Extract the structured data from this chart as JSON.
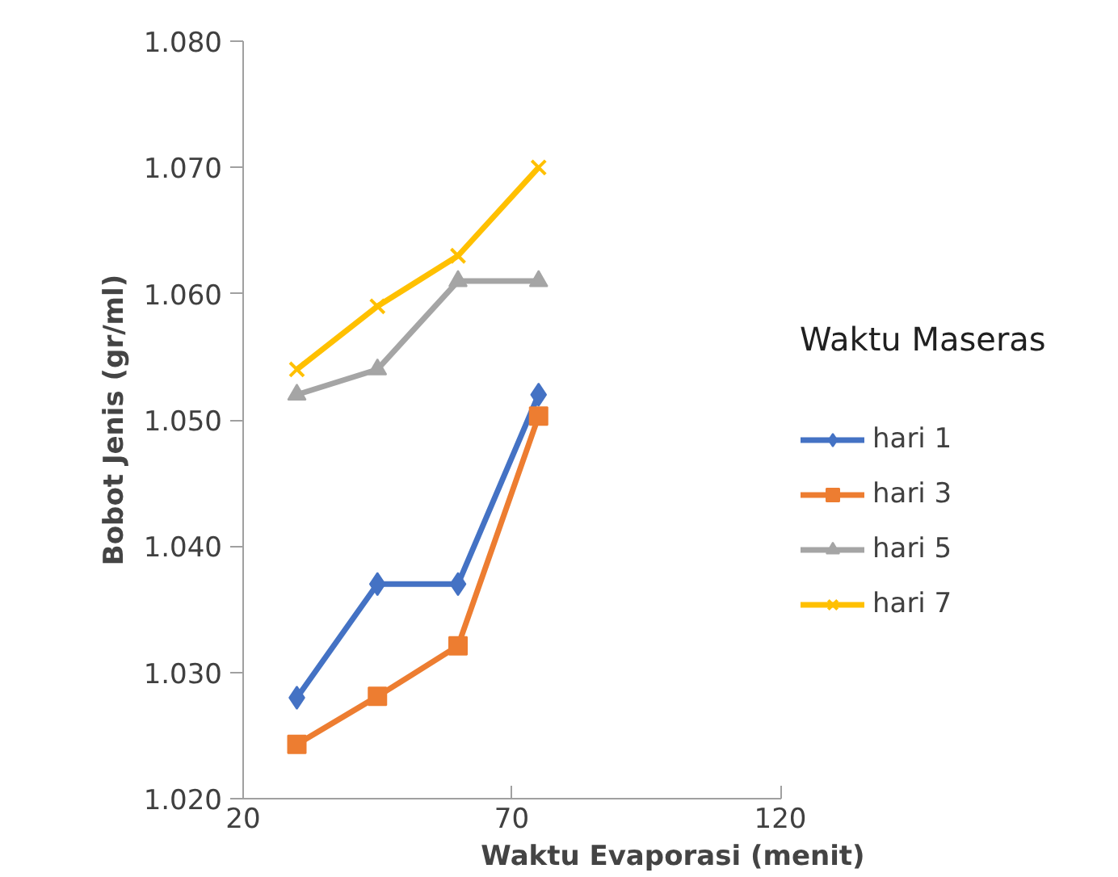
{
  "chart_data": {
    "type": "line",
    "xlabel": "Waktu Evaporasi (menit)",
    "ylabel": "Bobot Jenis (gr/ml)",
    "legend_title": "Waktu Maseras",
    "x": [
      30,
      45,
      60,
      75
    ],
    "series": [
      {
        "name": "hari 1",
        "color": "#4472c4",
        "marker": "diamond",
        "values": [
          1.028,
          1.037,
          1.037,
          1.052
        ]
      },
      {
        "name": "hari 3",
        "color": "#ed7d31",
        "marker": "square",
        "values": [
          1.0243,
          1.0281,
          1.0321,
          1.0503
        ]
      },
      {
        "name": "hari 5",
        "color": "#a5a5a5",
        "marker": "triangle",
        "values": [
          1.052,
          1.054,
          1.061,
          1.061
        ]
      },
      {
        "name": "hari 7",
        "color": "#ffc000",
        "marker": "cross",
        "values": [
          1.054,
          1.059,
          1.063,
          1.07
        ]
      }
    ],
    "xlim": [
      20,
      120
    ],
    "xticks": [
      20,
      70,
      120
    ],
    "ylim": [
      1.02,
      1.08
    ],
    "yticks": [
      {
        "value": 1.02,
        "label": "1.020"
      },
      {
        "value": 1.03,
        "label": "1.030"
      },
      {
        "value": 1.04,
        "label": "1.040"
      },
      {
        "value": 1.05,
        "label": "1.050"
      },
      {
        "value": 1.06,
        "label": "1.060"
      },
      {
        "value": 1.07,
        "label": "1.070"
      },
      {
        "value": 1.08,
        "label": "1.080"
      }
    ],
    "grid": false,
    "legend": "right"
  }
}
